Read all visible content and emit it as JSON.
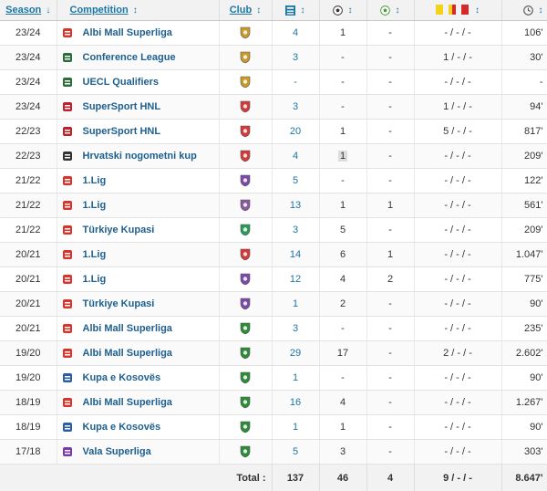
{
  "header": {
    "season": "Season",
    "competition": "Competition",
    "club": "Club",
    "apps_icon": "appearances-icon",
    "goals_icon": "goals-icon",
    "assists_icon": "assists-icon",
    "cards_icon": "cards-icon",
    "minutes_icon": "minutes-clock-icon",
    "sort_desc": "↓",
    "sort_both": "↕"
  },
  "rows": [
    {
      "season": "23/24",
      "competition": "Albi Mall Superliga",
      "apps": "4",
      "goals": "1",
      "assists": "-",
      "cards": "- / - / -",
      "minutes": "106'",
      "comp_logo": "#d9342b",
      "club_color": "#c89a2a"
    },
    {
      "season": "23/24",
      "competition": "Conference League",
      "apps": "3",
      "goals": "-",
      "assists": "-",
      "cards": "1 / - / -",
      "minutes": "30'",
      "comp_logo": "#2a6e3a",
      "club_color": "#c89a2a"
    },
    {
      "season": "23/24",
      "competition": "UECL Qualifiers",
      "apps": "-",
      "goals": "-",
      "assists": "-",
      "cards": "- / - / -",
      "minutes": "-",
      "comp_logo": "#2a6e3a",
      "club_color": "#c89a2a"
    },
    {
      "season": "23/24",
      "competition": "SuperSport HNL",
      "apps": "3",
      "goals": "-",
      "assists": "-",
      "cards": "1 / - / -",
      "minutes": "94'",
      "comp_logo": "#c0202a",
      "club_color": "#d33a3a"
    },
    {
      "season": "22/23",
      "competition": "SuperSport HNL",
      "apps": "20",
      "goals": "1",
      "assists": "-",
      "cards": "5 / - / -",
      "minutes": "817'",
      "comp_logo": "#c0202a",
      "club_color": "#d33a3a"
    },
    {
      "season": "22/23",
      "competition": "Hrvatski nogometni kup",
      "apps": "4",
      "goals": "1",
      "assists": "-",
      "cards": "- / - / -",
      "minutes": "209'",
      "comp_logo": "#333333",
      "club_color": "#d33a3a"
    },
    {
      "season": "21/22",
      "competition": "1.Lig",
      "apps": "5",
      "goals": "-",
      "assists": "-",
      "cards": "- / - / -",
      "minutes": "122'",
      "comp_logo": "#d9342b",
      "club_color": "#7a4aa8"
    },
    {
      "season": "21/22",
      "competition": "1.Lig",
      "apps": "13",
      "goals": "1",
      "assists": "1",
      "cards": "- / - / -",
      "minutes": "561'",
      "comp_logo": "#d9342b",
      "club_color": "#8a5aa0"
    },
    {
      "season": "21/22",
      "competition": "Türkiye Kupasi",
      "apps": "3",
      "goals": "5",
      "assists": "-",
      "cards": "- / - / -",
      "minutes": "209'",
      "comp_logo": "#d9342b",
      "club_color": "#2a9a5a"
    },
    {
      "season": "20/21",
      "competition": "1.Lig",
      "apps": "14",
      "goals": "6",
      "assists": "1",
      "cards": "- / - / -",
      "minutes": "1.047'",
      "comp_logo": "#d9342b",
      "club_color": "#d33a3a"
    },
    {
      "season": "20/21",
      "competition": "1.Lig",
      "apps": "12",
      "goals": "4",
      "assists": "2",
      "cards": "- / - / -",
      "minutes": "775'",
      "comp_logo": "#d9342b",
      "club_color": "#7a4aa8"
    },
    {
      "season": "20/21",
      "competition": "Türkiye Kupasi",
      "apps": "1",
      "goals": "2",
      "assists": "-",
      "cards": "- / - / -",
      "minutes": "90'",
      "comp_logo": "#d9342b",
      "club_color": "#7a4aa8"
    },
    {
      "season": "20/21",
      "competition": "Albi Mall Superliga",
      "apps": "3",
      "goals": "-",
      "assists": "-",
      "cards": "- / - / -",
      "minutes": "235'",
      "comp_logo": "#d9342b",
      "club_color": "#2e8b3a"
    },
    {
      "season": "19/20",
      "competition": "Albi Mall Superliga",
      "apps": "29",
      "goals": "17",
      "assists": "-",
      "cards": "2 / - / -",
      "minutes": "2.602'",
      "comp_logo": "#d9342b",
      "club_color": "#2e8b3a"
    },
    {
      "season": "19/20",
      "competition": "Kupa e Kosovës",
      "apps": "1",
      "goals": "-",
      "assists": "-",
      "cards": "- / - / -",
      "minutes": "90'",
      "comp_logo": "#2a5fa8",
      "club_color": "#2e8b3a"
    },
    {
      "season": "18/19",
      "competition": "Albi Mall Superliga",
      "apps": "16",
      "goals": "4",
      "assists": "-",
      "cards": "- / - / -",
      "minutes": "1.267'",
      "comp_logo": "#d9342b",
      "club_color": "#2e8b3a"
    },
    {
      "season": "18/19",
      "competition": "Kupa e Kosovës",
      "apps": "1",
      "goals": "1",
      "assists": "-",
      "cards": "- / - / -",
      "minutes": "90'",
      "comp_logo": "#2a5fa8",
      "club_color": "#2e8b3a"
    },
    {
      "season": "17/18",
      "competition": "Vala Superliga",
      "apps": "5",
      "goals": "3",
      "assists": "-",
      "cards": "- / - / -",
      "minutes": "303'",
      "comp_logo": "#7a3aa8",
      "club_color": "#2e8b3a"
    }
  ],
  "totals": {
    "label": "Total :",
    "apps": "137",
    "goals": "46",
    "assists": "4",
    "cards": "9 / - / -",
    "minutes": "8.647'"
  }
}
